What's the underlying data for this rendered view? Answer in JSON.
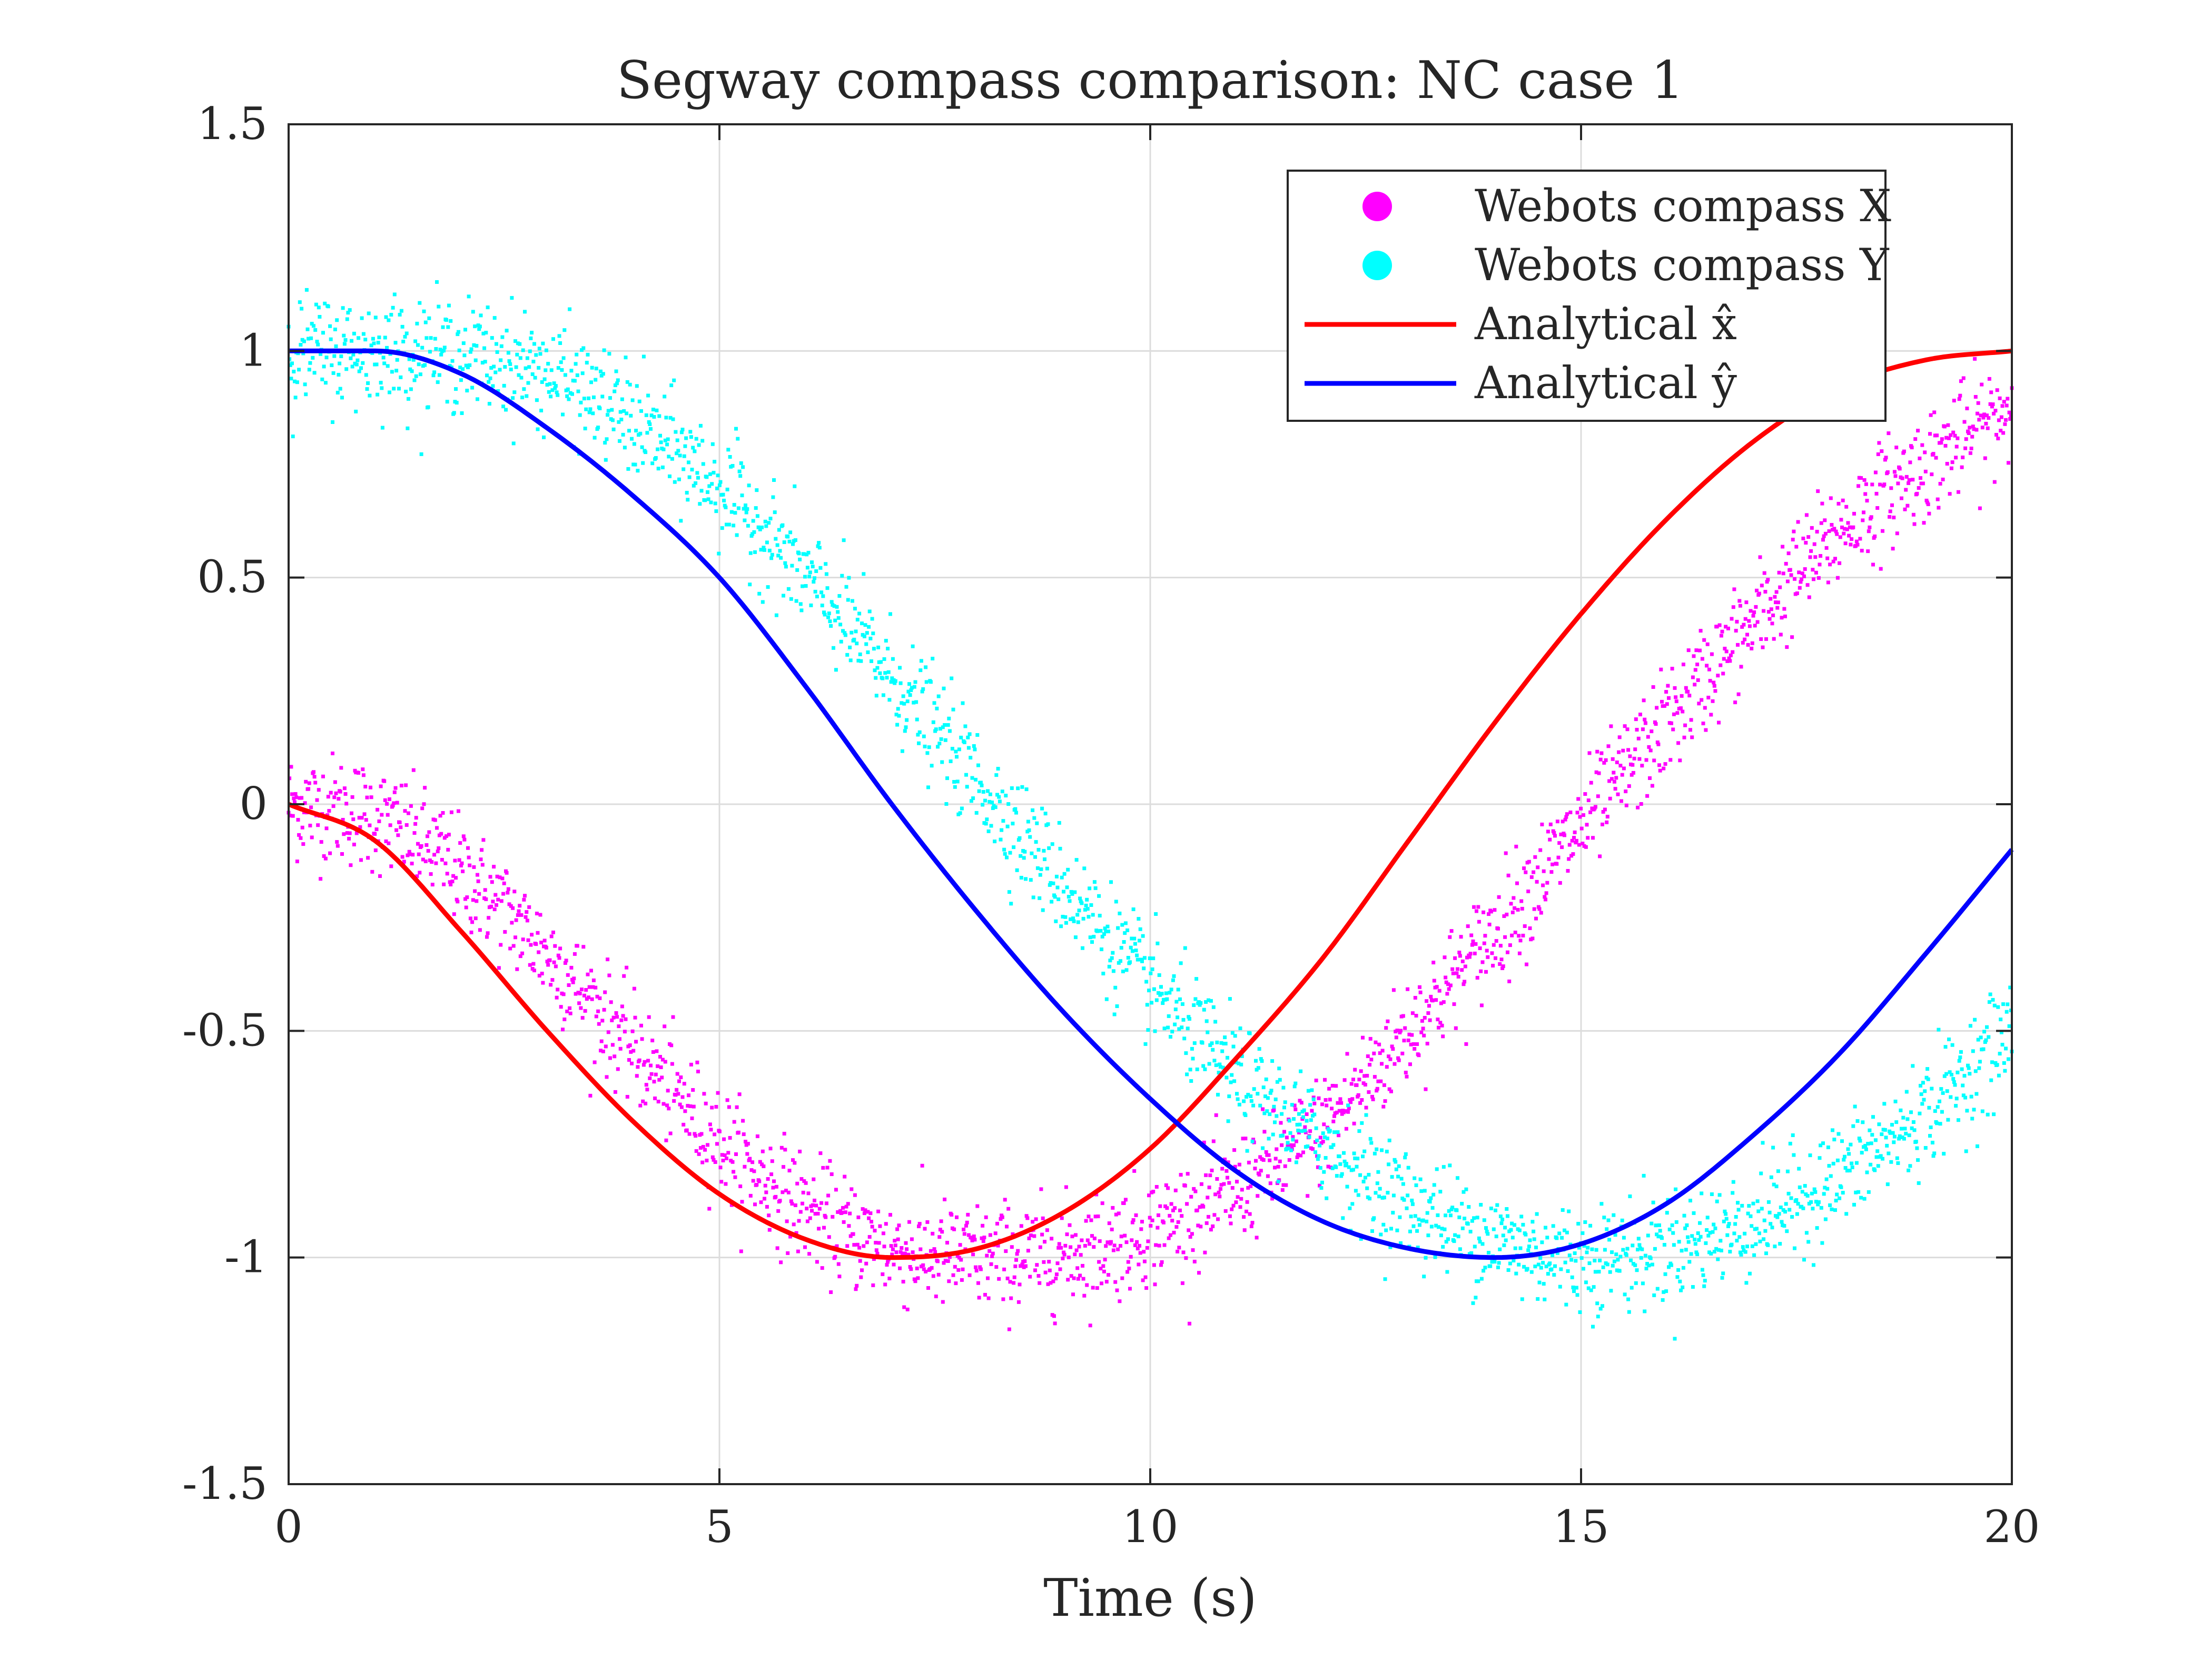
{
  "chart_data": {
    "type": "line",
    "title": "Segway compass comparison: NC case 1",
    "xlabel": "Time (s)",
    "ylabel": "",
    "xlim": [
      0,
      20
    ],
    "ylim": [
      -1.5,
      1.5
    ],
    "x_ticks": [
      0,
      5,
      10,
      15,
      20
    ],
    "x_tick_labels": [
      "0",
      "5",
      "10",
      "15",
      "20"
    ],
    "y_ticks": [
      -1.5,
      -1,
      -0.5,
      0,
      0.5,
      1,
      1.5
    ],
    "y_tick_labels": [
      "-1.5",
      "-1",
      "-0.5",
      "0",
      "0.5",
      "1",
      "1.5"
    ],
    "grid": true,
    "legend_position": "top-right",
    "series": [
      {
        "name": "Webots compass X",
        "kind": "scatter",
        "color": "#ff00ff",
        "x": [
          0,
          1,
          2,
          3,
          4,
          5,
          6,
          7,
          8,
          9,
          10,
          11,
          12,
          13,
          14,
          15,
          16,
          17,
          18,
          19,
          20
        ],
        "y": [
          0,
          -0.03,
          -0.15,
          -0.33,
          -0.54,
          -0.74,
          -0.89,
          -0.98,
          -1.0,
          -0.99,
          -0.94,
          -0.85,
          -0.71,
          -0.5,
          -0.28,
          -0.05,
          0.18,
          0.4,
          0.6,
          0.75,
          0.88
        ],
        "noise": 0.06
      },
      {
        "name": "Webots compass Y",
        "kind": "scatter",
        "color": "#00ffff",
        "x": [
          0,
          1,
          2,
          3,
          4,
          5,
          6,
          7,
          8,
          9,
          10,
          11,
          12,
          13,
          14,
          15,
          16,
          17,
          18,
          19,
          20
        ],
        "y": [
          1.0,
          1.0,
          0.99,
          0.95,
          0.84,
          0.7,
          0.5,
          0.28,
          0.05,
          -0.18,
          -0.4,
          -0.6,
          -0.75,
          -0.88,
          -0.96,
          -1.0,
          -0.98,
          -0.92,
          -0.82,
          -0.68,
          -0.5
        ],
        "noise": 0.06
      },
      {
        "name": "Analytical x̂",
        "kind": "line",
        "color": "#ff0000",
        "x": [
          0,
          1,
          2,
          3,
          4,
          5,
          6,
          7,
          8,
          9,
          10,
          11,
          12,
          13,
          14,
          15,
          16,
          17,
          18,
          19,
          20
        ],
        "y": [
          0,
          -0.08,
          -0.28,
          -0.5,
          -0.7,
          -0.86,
          -0.96,
          -1.0,
          -0.98,
          -0.9,
          -0.76,
          -0.56,
          -0.34,
          -0.08,
          0.18,
          0.42,
          0.63,
          0.8,
          0.92,
          0.98,
          1.0
        ]
      },
      {
        "name": "Analytical ŷ",
        "kind": "line",
        "color": "#0000ff",
        "x": [
          0,
          1,
          2,
          3,
          4,
          5,
          6,
          7,
          8,
          9,
          10,
          11,
          12,
          13,
          14,
          15,
          16,
          17,
          18,
          19,
          20
        ],
        "y": [
          1.0,
          1.0,
          0.95,
          0.83,
          0.68,
          0.5,
          0.26,
          0.0,
          -0.24,
          -0.46,
          -0.65,
          -0.81,
          -0.92,
          -0.98,
          -1.0,
          -0.97,
          -0.88,
          -0.73,
          -0.55,
          -0.33,
          -0.1
        ]
      }
    ]
  }
}
